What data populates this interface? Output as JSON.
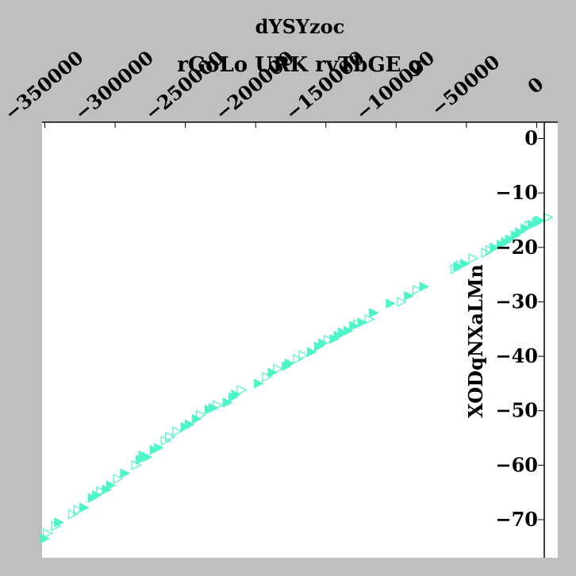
{
  "chart_data": {
    "type": "scatter",
    "title": "rGoLo URK rvTbGE g",
    "xlabel": "dYSYzoc",
    "ylabel": "XODqNXaLMn",
    "xlim": [
      -352000,
      15000
    ],
    "ylim": [
      -77,
      3
    ],
    "x_ticks": [
      -350000,
      -300000,
      -250000,
      -200000,
      -150000,
      -100000,
      -50000,
      0
    ],
    "x_tick_labels": [
      "−350000",
      "−300000",
      "−250000",
      "−200000",
      "−150000",
      "−100000",
      "−50000",
      "0"
    ],
    "y_ticks": [
      0,
      -10,
      -20,
      -30,
      -40,
      -50,
      -60,
      -70
    ],
    "y_tick_labels": [
      "0",
      "−10",
      "−20",
      "−30",
      "−40",
      "−50",
      "−60",
      "−70"
    ],
    "x_axis_position": "top",
    "y_axis_position": "right",
    "grid": false,
    "marker": "triangle-right",
    "color": "#4df5c8",
    "series": [
      {
        "marker_style": "filled",
        "points": [
          [
            -350000,
            -73.5
          ],
          [
            -340000,
            -70.5
          ],
          [
            -322000,
            -67.8
          ],
          [
            -316000,
            -66.0
          ],
          [
            -313000,
            -65.5
          ],
          [
            -306000,
            -64.5
          ],
          [
            -303000,
            -63.7
          ],
          [
            -293000,
            -61.5
          ],
          [
            -282000,
            -59.0
          ],
          [
            -280000,
            -58.2
          ],
          [
            -277000,
            -58.5
          ],
          [
            -272000,
            -57.2
          ],
          [
            -269000,
            -56.8
          ],
          [
            -250000,
            -53.0
          ],
          [
            -247000,
            -52.5
          ],
          [
            -242000,
            -51.5
          ],
          [
            -233000,
            -49.8
          ],
          [
            -230000,
            -49.5
          ],
          [
            -220000,
            -48.5
          ],
          [
            -216000,
            -47.5
          ],
          [
            -214000,
            -47.0
          ],
          [
            -198000,
            -45.0
          ],
          [
            -188000,
            -43.0
          ],
          [
            -178000,
            -41.8
          ],
          [
            -176000,
            -41.3
          ],
          [
            -160000,
            -39.2
          ],
          [
            -155000,
            -38.2
          ],
          [
            -152000,
            -37.6
          ],
          [
            -144000,
            -36.8
          ],
          [
            -141000,
            -36.2
          ],
          [
            -138000,
            -35.6
          ],
          [
            -134000,
            -35.3
          ],
          [
            -130000,
            -34.4
          ],
          [
            -124000,
            -33.8
          ],
          [
            -116000,
            -32.0
          ],
          [
            -104000,
            -30.3
          ],
          [
            -91000,
            -28.9
          ],
          [
            -80000,
            -27.2
          ],
          [
            -56000,
            -23.5
          ],
          [
            -51000,
            -23.0
          ],
          [
            -30000,
            -20.0
          ],
          [
            -25000,
            -19.5
          ],
          [
            -22000,
            -19.0
          ],
          [
            -19000,
            -18.5
          ],
          [
            -15000,
            -17.8
          ],
          [
            -12000,
            -17.2
          ],
          [
            -8000,
            -16.5
          ],
          [
            -3000,
            -15.8
          ],
          [
            1000,
            -15.2
          ],
          [
            2000,
            -15.0
          ]
        ]
      },
      {
        "marker_style": "open",
        "points": [
          [
            -348000,
            -72.5
          ],
          [
            -342000,
            -71.2
          ],
          [
            -330000,
            -69.0
          ],
          [
            -326000,
            -68.2
          ],
          [
            -310000,
            -64.8
          ],
          [
            -298000,
            -62.5
          ],
          [
            -285000,
            -60.0
          ],
          [
            -264000,
            -55.5
          ],
          [
            -261000,
            -54.8
          ],
          [
            -256000,
            -53.8
          ],
          [
            -239000,
            -50.8
          ],
          [
            -227000,
            -49.0
          ],
          [
            -210000,
            -46.2
          ],
          [
            -192000,
            -43.8
          ],
          [
            -184000,
            -42.3
          ],
          [
            -170000,
            -40.5
          ],
          [
            -166000,
            -39.8
          ],
          [
            -148000,
            -37.0
          ],
          [
            -127000,
            -34.1
          ],
          [
            -119000,
            -33.2
          ],
          [
            -96000,
            -30.0
          ],
          [
            -85000,
            -27.8
          ],
          [
            -58000,
            -24.0
          ],
          [
            -54000,
            -23.3
          ],
          [
            -45000,
            -22.0
          ],
          [
            -36000,
            -21.0
          ],
          [
            -33000,
            -20.5
          ],
          [
            -5000,
            -16.0
          ],
          [
            0,
            -15.5
          ],
          [
            8000,
            -14.5
          ]
        ]
      }
    ]
  }
}
